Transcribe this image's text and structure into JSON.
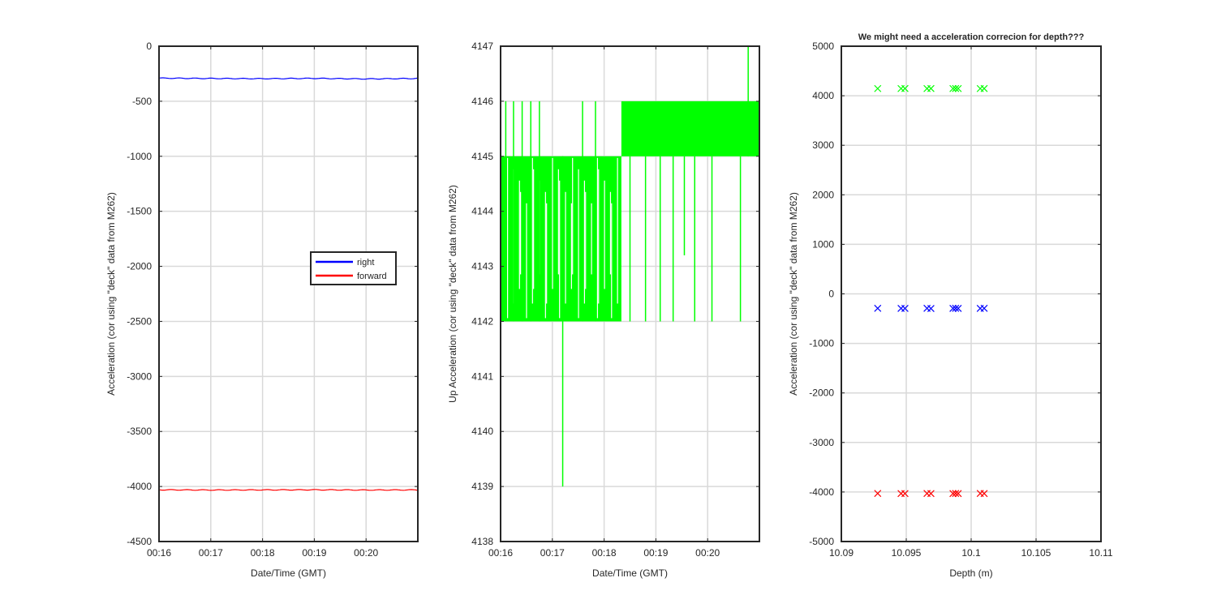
{
  "chart_data": [
    {
      "type": "line",
      "title": "",
      "xlabel": "Date/Time (GMT)",
      "ylabel": "Acceleration (cor using \"deck\" data from M262)",
      "x_ticks": [
        "00:16",
        "00:17",
        "00:18",
        "00:19",
        "00:20"
      ],
      "x_range": [
        "00:16:00",
        "00:21:00"
      ],
      "ylim": [
        -4500,
        0
      ],
      "y_ticks": [
        "0",
        "-500",
        "-1000",
        "-1500",
        "-2000",
        "-2500",
        "-3000",
        "-3500",
        "-4000",
        "-4500"
      ],
      "grid": true,
      "legend": {
        "placement": "right",
        "entries": [
          "right",
          "forward"
        ]
      },
      "series": [
        {
          "name": "right",
          "color": "#0000ff",
          "x": [
            "00:16:00",
            "00:17:00",
            "00:18:00",
            "00:19:00",
            "00:20:00",
            "00:21:00"
          ],
          "values": [
            -290,
            -293,
            -295,
            -292,
            -297,
            -293
          ]
        },
        {
          "name": "forward",
          "color": "#ff0000",
          "x": [
            "00:16:00",
            "00:17:00",
            "00:18:00",
            "00:19:00",
            "00:20:00",
            "00:21:00"
          ],
          "values": [
            -4030,
            -4032,
            -4031,
            -4030,
            -4032,
            -4031
          ]
        }
      ]
    },
    {
      "type": "line",
      "title": "",
      "xlabel": "Date/Time (GMT)",
      "ylabel": "Up Acceleration (cor using \"deck\" data from M262)",
      "x_ticks": [
        "00:16",
        "00:17",
        "00:18",
        "00:19",
        "00:20"
      ],
      "x_range": [
        "00:16:00",
        "00:21:00"
      ],
      "ylim": [
        4138,
        4147
      ],
      "y_ticks": [
        "4147",
        "4146",
        "4145",
        "4144",
        "4143",
        "4142",
        "4141",
        "4140",
        "4139",
        "4138"
      ],
      "grid": true,
      "series": [
        {
          "color": "#00ff00",
          "bands": [
            {
              "from": "00:16:00",
              "to": "00:18:20",
              "low": 4142,
              "high": 4145
            },
            {
              "from": "00:18:20",
              "to": "00:21:00",
              "low": 4145,
              "high": 4146
            }
          ],
          "spikes": [
            {
              "x": "00:16:06",
              "low": 4142,
              "high": 4146
            },
            {
              "x": "00:16:15",
              "low": 4142,
              "high": 4146
            },
            {
              "x": "00:16:25",
              "low": 4142,
              "high": 4146
            },
            {
              "x": "00:16:35",
              "low": 4142,
              "high": 4146
            },
            {
              "x": "00:16:45",
              "low": 4142,
              "high": 4146
            },
            {
              "x": "00:17:12",
              "low": 4139,
              "high": 4145
            },
            {
              "x": "00:17:35",
              "low": 4142,
              "high": 4146
            },
            {
              "x": "00:17:50",
              "low": 4142,
              "high": 4146
            },
            {
              "x": "00:18:30",
              "low": 4142,
              "high": 4145
            },
            {
              "x": "00:18:48",
              "low": 4142,
              "high": 4145
            },
            {
              "x": "00:19:05",
              "low": 4142,
              "high": 4145
            },
            {
              "x": "00:19:20",
              "low": 4142,
              "high": 4145
            },
            {
              "x": "00:19:33",
              "low": 4143.2,
              "high": 4145
            },
            {
              "x": "00:19:45",
              "low": 4142,
              "high": 4145
            },
            {
              "x": "00:20:05",
              "low": 4142,
              "high": 4145
            },
            {
              "x": "00:20:38",
              "low": 4142,
              "high": 4145
            },
            {
              "x": "00:20:47",
              "low": 4145,
              "high": 4147
            }
          ]
        }
      ]
    },
    {
      "type": "scatter",
      "title": "We might need a acceleration correcion for depth???",
      "xlabel": "Depth (m)",
      "ylabel": "Acceleration (cor using \"deck\" data from M262)",
      "x_ticks": [
        "10.09",
        "10.095",
        "10.1",
        "10.105",
        "10.11"
      ],
      "xlim": [
        10.09,
        10.11
      ],
      "ylim": [
        -5000,
        5000
      ],
      "y_ticks": [
        "5000",
        "4000",
        "3000",
        "2000",
        "1000",
        "0",
        "-1000",
        "-2000",
        "-3000",
        "-4000",
        "-5000"
      ],
      "grid": true,
      "marker": "x",
      "series": [
        {
          "color": "#00ff00",
          "x": [
            10.0928,
            10.0946,
            10.0949,
            10.0966,
            10.0969,
            10.0986,
            10.0988,
            10.099,
            10.1007,
            10.101
          ],
          "values": [
            4145,
            4145,
            4146,
            4145,
            4146,
            4145,
            4146,
            4145,
            4145,
            4146
          ]
        },
        {
          "color": "#0000ff",
          "x": [
            10.0928,
            10.0946,
            10.0949,
            10.0966,
            10.0969,
            10.0986,
            10.0988,
            10.099,
            10.1007,
            10.101
          ],
          "values": [
            -292,
            -293,
            -294,
            -292,
            -295,
            -293,
            -292,
            -294,
            -293,
            -292
          ]
        },
        {
          "color": "#ff0000",
          "x": [
            10.0928,
            10.0946,
            10.0949,
            10.0966,
            10.0969,
            10.0986,
            10.0988,
            10.099,
            10.1007,
            10.101
          ],
          "values": [
            -4030,
            -4031,
            -4032,
            -4030,
            -4031,
            -4032,
            -4030,
            -4031,
            -4030,
            -4031
          ]
        }
      ]
    }
  ]
}
